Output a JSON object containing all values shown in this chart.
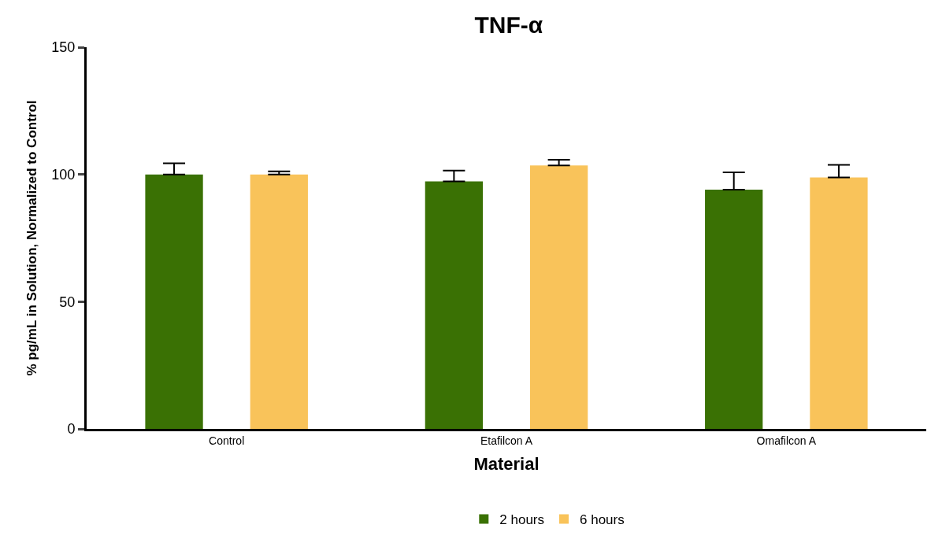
{
  "chart_data": {
    "type": "bar",
    "title": "TNF-α",
    "xlabel": "Material",
    "ylabel": "% pg/mL in Solution, Normalized to Control",
    "categories": [
      "Control",
      "Etafilcon A",
      "Omafilcon A"
    ],
    "series": [
      {
        "name": "2 hours",
        "color": "#3a7104",
        "values": [
          100,
          97.3,
          94
        ],
        "errors": [
          [
            100,
            104.4
          ],
          [
            97.3,
            101.5
          ],
          [
            94,
            100.8
          ]
        ]
      },
      {
        "name": "6 hours",
        "color": "#f9c35a",
        "values": [
          100,
          103.5,
          98.8
        ],
        "errors": [
          [
            100,
            101.2
          ],
          [
            103.5,
            105.8
          ],
          [
            98.8,
            103.8
          ]
        ]
      }
    ],
    "ylim": [
      0,
      150
    ],
    "yticks": [
      0,
      50,
      100,
      150
    ],
    "legend": "bottom"
  }
}
